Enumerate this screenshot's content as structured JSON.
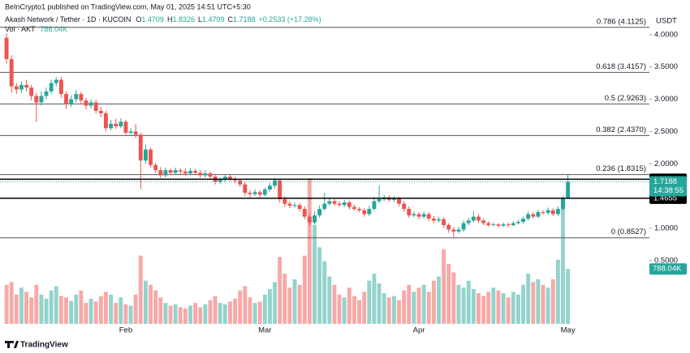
{
  "chart_data": {
    "type": "candlestick",
    "published": "BeInCrypto1 published on TradingView.com, May 01, 2025 14:51 UTC+5:30",
    "legend": {
      "symbol": "Akash Network / Tether · 1D · KUCOIN",
      "items": [
        {
          "letter": "O",
          "value": 1.4709
        },
        {
          "letter": "H",
          "value": 1.8326
        },
        {
          "letter": "L",
          "value": 1.4709
        },
        {
          "letter": "C",
          "value": 1.7188
        }
      ],
      "change": "+0.2533 (+17.28%)",
      "volume_name": "Vol · AKT"
    },
    "currency": "USDT",
    "footer": "TradingView",
    "categories": [
      null,
      null,
      null,
      null,
      null,
      null,
      null,
      null,
      null,
      null,
      null,
      null,
      null,
      null,
      null,
      null,
      null,
      null,
      null,
      null,
      null,
      null,
      null,
      null,
      "Feb",
      null,
      null,
      null,
      null,
      null,
      null,
      null,
      null,
      null,
      null,
      null,
      null,
      null,
      null,
      null,
      null,
      null,
      null,
      null,
      null,
      null,
      null,
      null,
      null,
      null,
      null,
      null,
      "Mar",
      null,
      null,
      null,
      null,
      null,
      null,
      null,
      null,
      null,
      null,
      null,
      null,
      null,
      null,
      null,
      null,
      null,
      null,
      null,
      null,
      null,
      null,
      null,
      null,
      null,
      null,
      null,
      null,
      null,
      null,
      "Apr",
      null,
      null,
      null,
      null,
      null,
      null,
      null,
      null,
      null,
      null,
      null,
      null,
      null,
      null,
      null,
      null,
      null,
      null,
      null,
      null,
      null,
      null,
      null,
      null,
      null,
      null,
      null,
      null,
      null,
      "May"
    ],
    "open": [
      3.95,
      3.62,
      3.2,
      3.15,
      3.22,
      3.18,
      3.05,
      2.95,
      3.05,
      3.12,
      3.25,
      3.3,
      3.08,
      2.92,
      3.0,
      3.08,
      2.98,
      2.9,
      2.95,
      2.82,
      2.78,
      2.55,
      2.62,
      2.58,
      2.65,
      2.48,
      2.5,
      2.45,
      2.05,
      2.22,
      1.98,
      1.9,
      1.82,
      1.9,
      1.86,
      1.9,
      1.88,
      1.85,
      1.89,
      1.86,
      1.82,
      1.85,
      1.8,
      1.72,
      1.75,
      1.8,
      1.76,
      1.74,
      1.68,
      1.55,
      1.53,
      1.56,
      1.52,
      1.6,
      1.66,
      1.74,
      1.45,
      1.38,
      1.35,
      1.36,
      1.3,
      1.18,
      1.09,
      1.2,
      1.3,
      1.38,
      1.42,
      1.38,
      1.36,
      1.4,
      1.33,
      1.3,
      1.28,
      1.22,
      1.3,
      1.42,
      1.45,
      1.48,
      1.44,
      1.46,
      1.38,
      1.3,
      1.2,
      1.22,
      1.18,
      1.22,
      1.15,
      1.12,
      1.14,
      1.05,
      0.98,
      0.95,
      0.98,
      1.08,
      1.12,
      1.18,
      1.12,
      1.08,
      1.05,
      1.06,
      1.04,
      1.06,
      1.05,
      1.08,
      1.1,
      1.15,
      1.22,
      1.18,
      1.25,
      1.24,
      1.28,
      1.22,
      1.3,
      1.4709
    ],
    "high": [
      4.02,
      3.68,
      3.25,
      3.28,
      3.3,
      3.22,
      3.1,
      3.12,
      3.18,
      3.3,
      3.34,
      3.35,
      3.12,
      3.06,
      3.14,
      3.12,
      3.02,
      3.0,
      2.99,
      2.88,
      2.82,
      2.68,
      2.7,
      2.7,
      2.68,
      2.55,
      2.62,
      2.48,
      2.3,
      2.25,
      2.02,
      1.95,
      1.94,
      1.93,
      1.94,
      1.93,
      1.92,
      1.93,
      1.92,
      1.9,
      1.9,
      1.88,
      1.83,
      1.79,
      1.84,
      1.83,
      1.8,
      1.77,
      1.72,
      1.59,
      1.6,
      1.59,
      1.63,
      1.7,
      1.78,
      1.76,
      1.5,
      1.42,
      1.4,
      1.39,
      1.34,
      1.22,
      1.26,
      1.36,
      1.55,
      1.47,
      1.45,
      1.42,
      1.44,
      1.43,
      1.37,
      1.33,
      1.31,
      1.35,
      1.48,
      1.66,
      1.52,
      1.51,
      1.5,
      1.49,
      1.42,
      1.34,
      1.26,
      1.25,
      1.26,
      1.25,
      1.19,
      1.18,
      1.17,
      1.08,
      1.02,
      1.02,
      1.12,
      1.16,
      1.26,
      1.22,
      1.15,
      1.11,
      1.09,
      1.08,
      1.09,
      1.09,
      1.11,
      1.13,
      1.18,
      1.26,
      1.25,
      1.29,
      1.28,
      1.32,
      1.31,
      1.34,
      1.5,
      1.8326
    ],
    "low": [
      3.55,
      3.1,
      3.08,
      3.1,
      3.12,
      2.98,
      2.65,
      2.9,
      3.0,
      3.08,
      3.2,
      3.02,
      2.85,
      2.88,
      2.95,
      2.92,
      2.84,
      2.86,
      2.78,
      2.72,
      2.5,
      2.52,
      2.54,
      2.55,
      2.43,
      2.45,
      2.4,
      1.6,
      2.0,
      1.94,
      1.86,
      1.78,
      1.79,
      1.82,
      1.83,
      1.84,
      1.81,
      1.82,
      1.82,
      1.78,
      1.79,
      1.76,
      1.68,
      1.69,
      1.72,
      1.73,
      1.7,
      1.64,
      1.5,
      1.48,
      1.5,
      1.48,
      1.49,
      1.57,
      1.62,
      1.4,
      1.33,
      1.31,
      1.32,
      1.26,
      1.14,
      1.04,
      1.06,
      1.17,
      1.27,
      1.35,
      1.35,
      1.33,
      1.33,
      1.29,
      1.27,
      1.25,
      1.18,
      1.19,
      1.27,
      1.39,
      1.42,
      1.41,
      1.41,
      1.34,
      1.26,
      1.16,
      1.17,
      1.14,
      1.15,
      1.11,
      1.08,
      1.09,
      1.01,
      0.93,
      0.85,
      0.92,
      0.95,
      1.05,
      1.09,
      1.08,
      1.05,
      1.02,
      1.03,
      1.01,
      1.02,
      1.02,
      1.03,
      1.06,
      1.07,
      1.12,
      1.15,
      1.16,
      1.21,
      1.21,
      1.19,
      1.19,
      1.27,
      1.4709
    ],
    "close": [
      3.62,
      3.2,
      3.15,
      3.22,
      3.18,
      3.05,
      2.95,
      3.05,
      3.12,
      3.25,
      3.3,
      3.08,
      2.92,
      3.0,
      3.08,
      2.98,
      2.9,
      2.95,
      2.82,
      2.78,
      2.55,
      2.62,
      2.58,
      2.65,
      2.48,
      2.5,
      2.45,
      2.05,
      2.22,
      1.98,
      1.9,
      1.82,
      1.9,
      1.86,
      1.9,
      1.88,
      1.85,
      1.89,
      1.86,
      1.82,
      1.85,
      1.8,
      1.72,
      1.75,
      1.8,
      1.76,
      1.74,
      1.68,
      1.55,
      1.53,
      1.56,
      1.52,
      1.6,
      1.66,
      1.74,
      1.45,
      1.38,
      1.35,
      1.36,
      1.3,
      1.18,
      1.09,
      1.2,
      1.3,
      1.38,
      1.42,
      1.38,
      1.36,
      1.4,
      1.33,
      1.3,
      1.28,
      1.22,
      1.3,
      1.42,
      1.45,
      1.48,
      1.44,
      1.46,
      1.38,
      1.3,
      1.2,
      1.22,
      1.18,
      1.22,
      1.15,
      1.12,
      1.14,
      1.05,
      0.98,
      0.95,
      0.98,
      1.08,
      1.12,
      1.18,
      1.12,
      1.08,
      1.05,
      1.06,
      1.04,
      1.06,
      1.05,
      1.08,
      1.1,
      1.15,
      1.22,
      1.18,
      1.25,
      1.24,
      1.28,
      1.22,
      1.3,
      1.4655,
      1.7188
    ],
    "volume": {
      "values": [
        560000,
        600000,
        420000,
        520000,
        460000,
        380000,
        560000,
        420000,
        360000,
        480000,
        540000,
        400000,
        380000,
        330000,
        420000,
        480000,
        300000,
        360000,
        320000,
        400000,
        460000,
        420000,
        300000,
        380000,
        280000,
        260000,
        420000,
        980000,
        620000,
        560000,
        480000,
        380000,
        300000,
        260000,
        280000,
        240000,
        220000,
        260000,
        300000,
        240000,
        280000,
        340000,
        400000,
        300000,
        280000,
        320000,
        360000,
        480000,
        540000,
        380000,
        300000,
        320000,
        420000,
        500000,
        600000,
        960000,
        720000,
        520000,
        640000,
        560000,
        980000,
        2090000,
        1420000,
        1100000,
        900000,
        680000,
        560000,
        420000,
        380000,
        520000,
        400000,
        340000,
        460000,
        620000,
        720000,
        580000,
        440000,
        380000,
        400000,
        340000,
        480000,
        560000,
        460000,
        520000,
        560000,
        460000,
        620000,
        680000,
        1070000,
        860000,
        740000,
        560000,
        520000,
        620000,
        500000,
        440000,
        400000,
        460000,
        520000,
        480000,
        440000,
        380000,
        460000,
        420000,
        560000,
        720000,
        600000,
        640000,
        560000,
        520000,
        640000,
        920000,
        1770000,
        788040
      ],
      "last_label": "788.04K",
      "vmax": 4300000
    },
    "ylim": [
      -0.48,
      4.16
    ],
    "yticks": [
      {
        "value": 4,
        "label": "4.0000"
      },
      {
        "value": 3.5,
        "label": "3.5000"
      },
      {
        "value": 3,
        "label": "3.0000"
      },
      {
        "value": 2.5,
        "label": "2.5000"
      },
      {
        "value": 2,
        "label": "2.0000"
      },
      {
        "value": 1,
        "label": "1.0000"
      },
      {
        "value": 0.5,
        "label": "0.5000"
      }
    ],
    "fib_levels": [
      {
        "label": "0.786 (4.1125)",
        "value": 4.1125
      },
      {
        "label": "0.618 (3.4157)",
        "value": 3.4157
      },
      {
        "label": "0.5 (2.9263)",
        "value": 2.9263
      },
      {
        "label": "0.382 (2.4370)",
        "value": 2.437
      },
      {
        "label": "0.236 (1.8315)",
        "value": 1.8315
      },
      {
        "label": "0 (0.8527)",
        "value": 0.8527
      }
    ],
    "levels": [
      1.7599,
      1.4655
    ],
    "last_price": 1.7188,
    "countdown": "14:38:55",
    "up_color": "#26a69a",
    "down_color": "#ef5350",
    "up_volume_color": "#93d3cc",
    "down_volume_color": "#f7a9a7",
    "level_color": "#000000",
    "fib_color": "#555555"
  }
}
